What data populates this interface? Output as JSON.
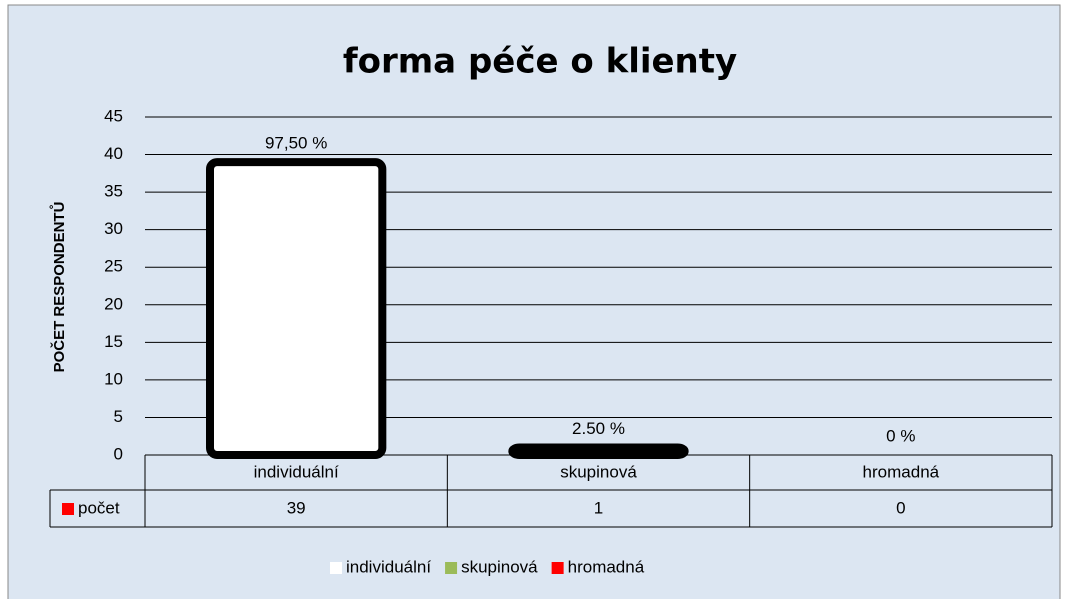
{
  "chart_data": {
    "type": "bar",
    "title": "forma péče o klienty",
    "ylabel": "POČET RESPONDENTŮ",
    "categories": [
      "individuální",
      "skupinová",
      "hromadná"
    ],
    "series": [
      {
        "name": "počet",
        "color": "#ff0000",
        "values": [
          39,
          1,
          0
        ]
      }
    ],
    "colors": [
      "#ffffff",
      "#9bbb59",
      "#ff0000"
    ],
    "annotations": [
      "97,50 %",
      "2.50 %",
      "0 %"
    ],
    "ylim": [
      0,
      45
    ],
    "yticks": [
      0,
      5,
      10,
      15,
      20,
      25,
      30,
      35,
      40,
      45
    ],
    "grid": true,
    "legend": "bottom"
  }
}
